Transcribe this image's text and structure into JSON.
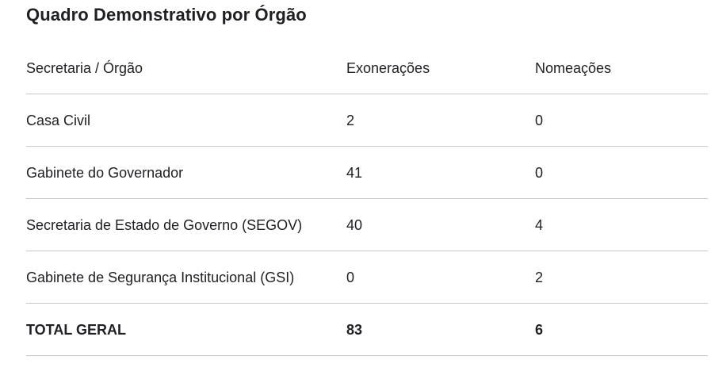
{
  "title": "Quadro Demonstrativo por Órgão",
  "table": {
    "columns": [
      "Secretaria / Órgão",
      "Exonerações",
      "Nomeações"
    ],
    "rows": [
      {
        "orgao": "Casa Civil",
        "exoneracoes": "2",
        "nomeacoes": "0"
      },
      {
        "orgao": "Gabinete do Governador",
        "exoneracoes": "41",
        "nomeacoes": "0"
      },
      {
        "orgao": "Secretaria de Estado de Governo (SEGOV)",
        "exoneracoes": "40",
        "nomeacoes": "4"
      },
      {
        "orgao": "Gabinete de Segurança Institucional (GSI)",
        "exoneracoes": "0",
        "nomeacoes": "2"
      }
    ],
    "total": {
      "label": "TOTAL GERAL",
      "exoneracoes": "83",
      "nomeacoes": "6"
    }
  },
  "colors": {
    "text": "#202124",
    "divider": "#c8c8c8",
    "background": "#ffffff"
  }
}
